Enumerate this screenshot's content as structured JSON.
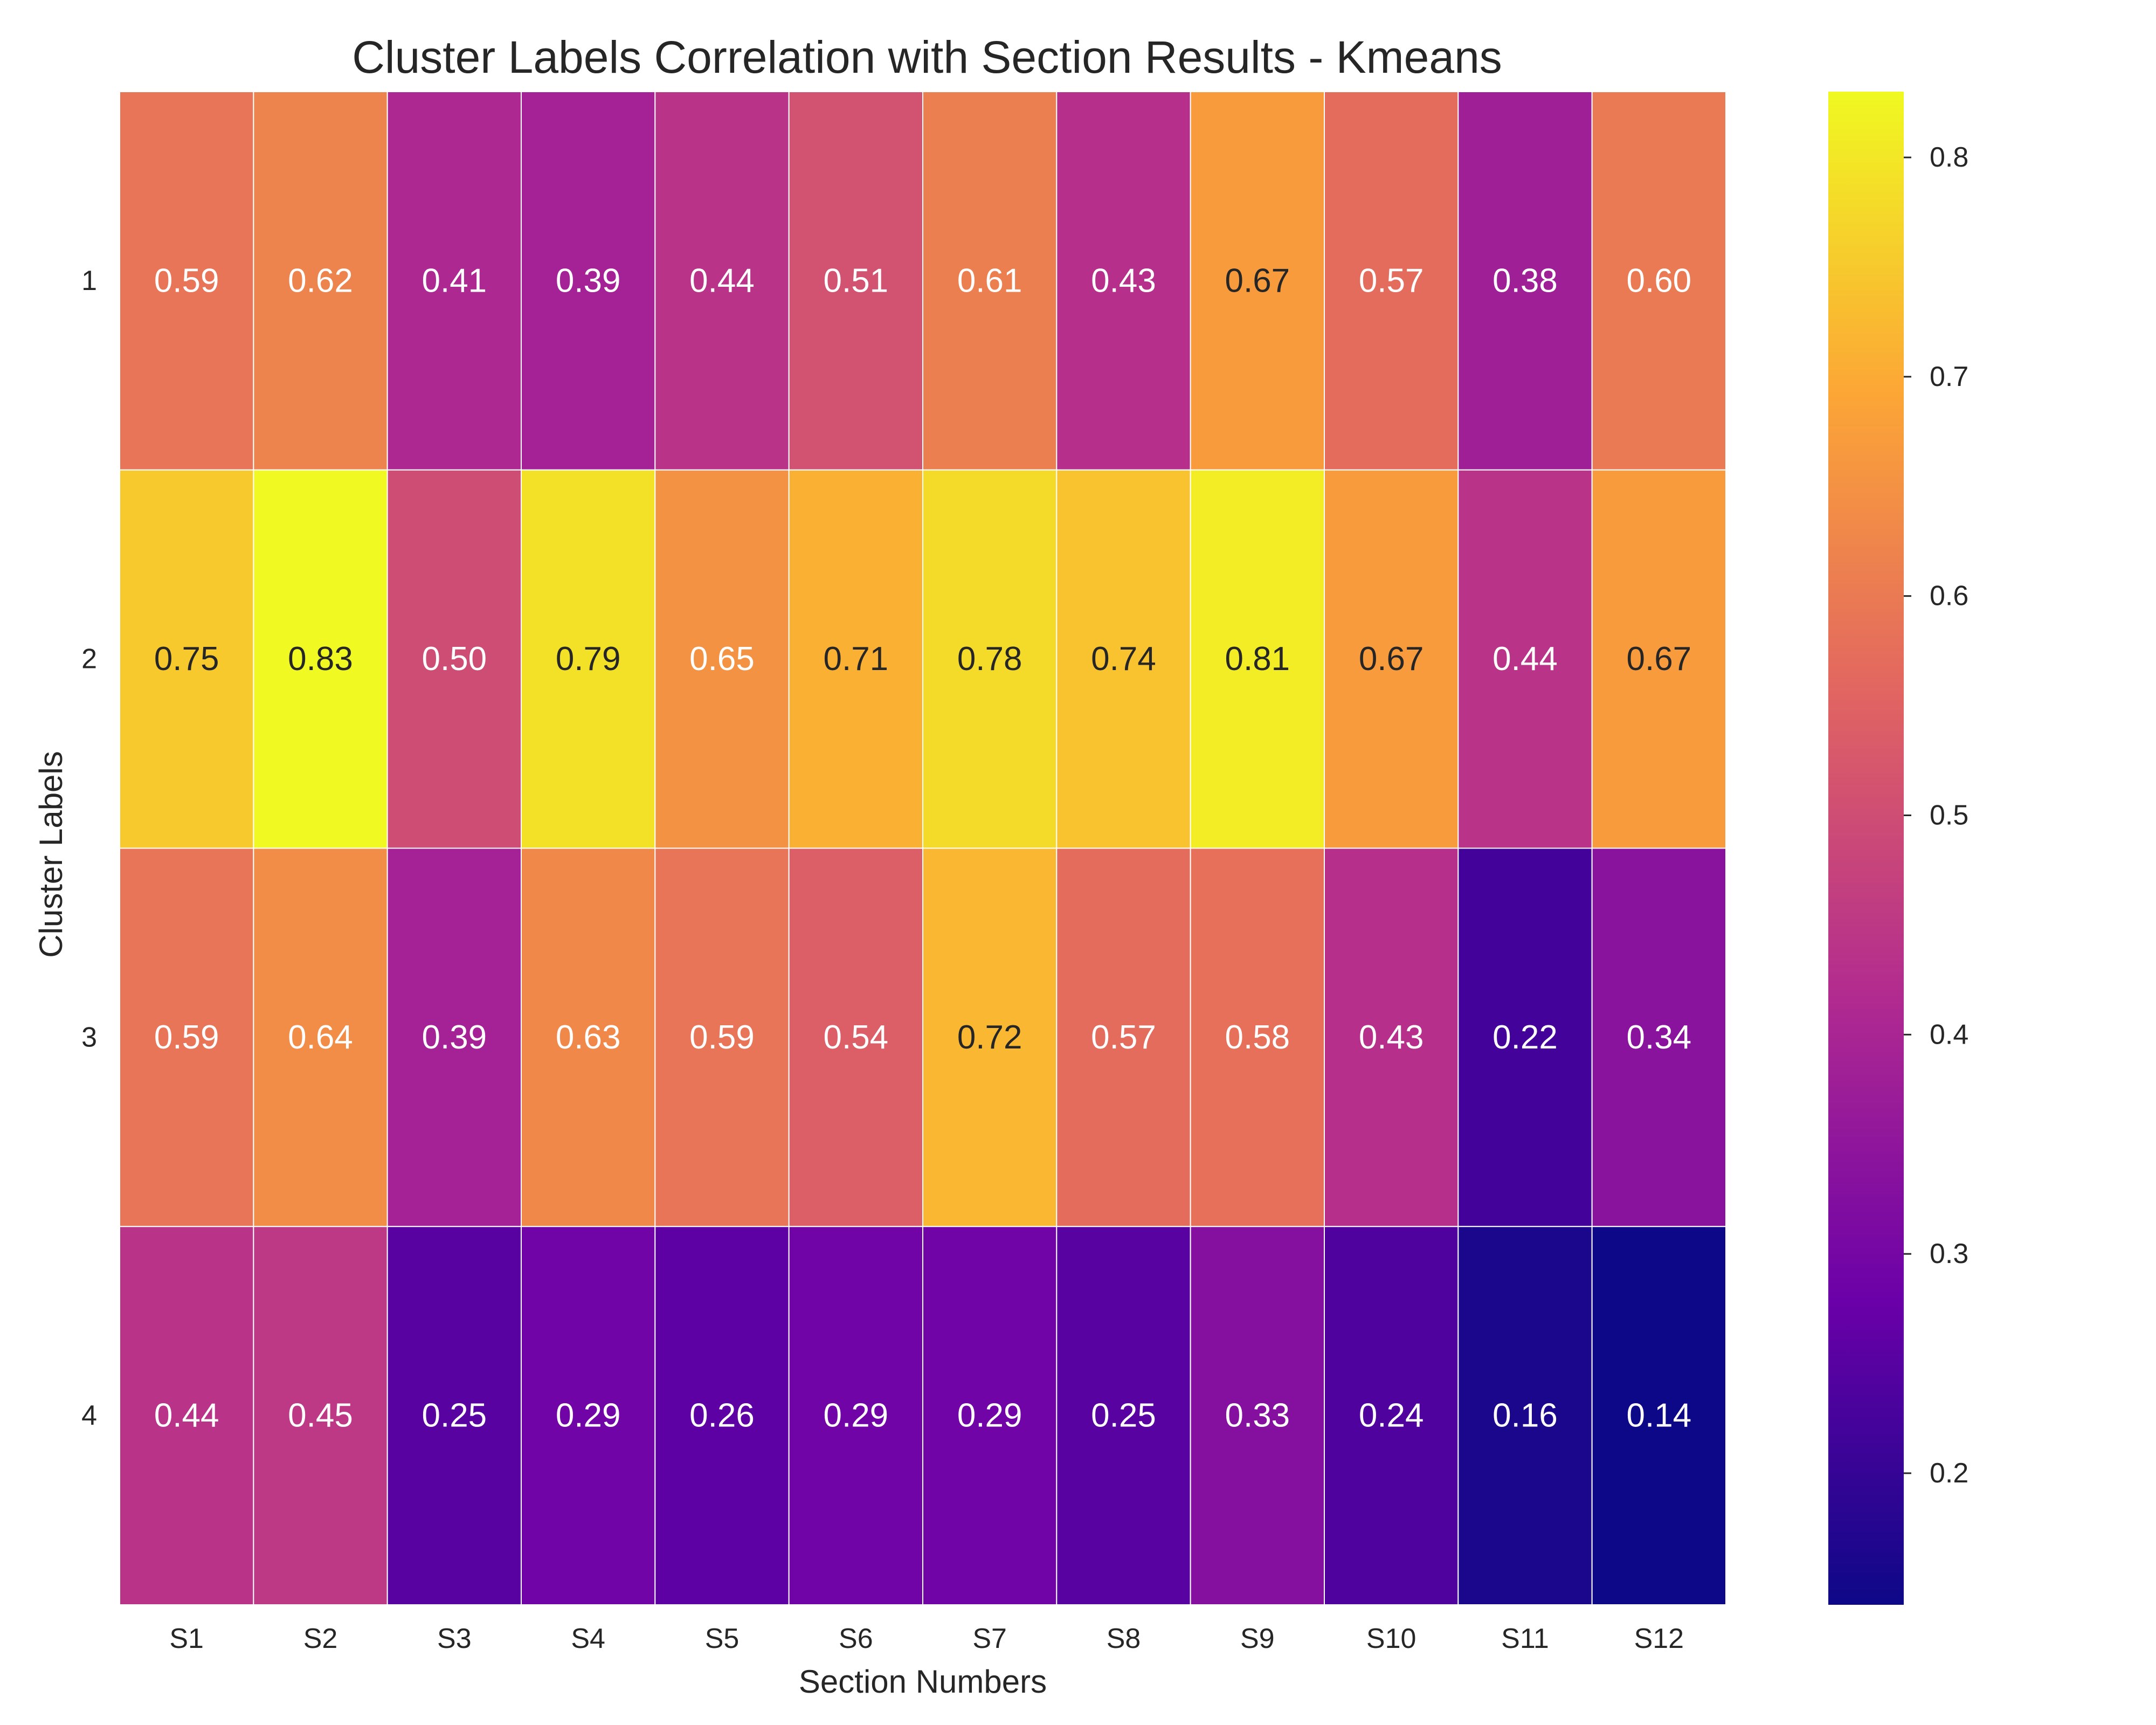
{
  "chart_data": {
    "type": "heatmap",
    "title": "Cluster Labels Correlation with Section Results - Kmeans",
    "xlabel": "Section Numbers",
    "ylabel": "Cluster Labels",
    "x_categories": [
      "S1",
      "S2",
      "S3",
      "S4",
      "S5",
      "S6",
      "S7",
      "S8",
      "S9",
      "S10",
      "S11",
      "S12"
    ],
    "y_categories": [
      "1",
      "2",
      "3",
      "4"
    ],
    "values": [
      [
        0.59,
        0.62,
        0.41,
        0.39,
        0.44,
        0.51,
        0.61,
        0.43,
        0.67,
        0.57,
        0.38,
        0.6
      ],
      [
        0.75,
        0.83,
        0.5,
        0.79,
        0.65,
        0.71,
        0.78,
        0.74,
        0.81,
        0.67,
        0.44,
        0.67
      ],
      [
        0.59,
        0.64,
        0.39,
        0.63,
        0.59,
        0.54,
        0.72,
        0.57,
        0.58,
        0.43,
        0.22,
        0.34
      ],
      [
        0.44,
        0.45,
        0.25,
        0.29,
        0.26,
        0.29,
        0.29,
        0.25,
        0.33,
        0.24,
        0.16,
        0.14
      ]
    ],
    "value_format": "0.00",
    "colormap": "plasma",
    "colormap_stops": [
      "#0d0887",
      "#6a00a8",
      "#b12a90",
      "#e16462",
      "#fca636",
      "#f0f921"
    ],
    "vmin": 0.14,
    "vmax": 0.83,
    "colorbar_ticks": [
      "0.2",
      "0.3",
      "0.4",
      "0.5",
      "0.6",
      "0.7",
      "0.8"
    ],
    "annotation_dark_color": "#262626",
    "annotation_light_color": "#ffffff",
    "cell_border_color": "#ffffff"
  }
}
